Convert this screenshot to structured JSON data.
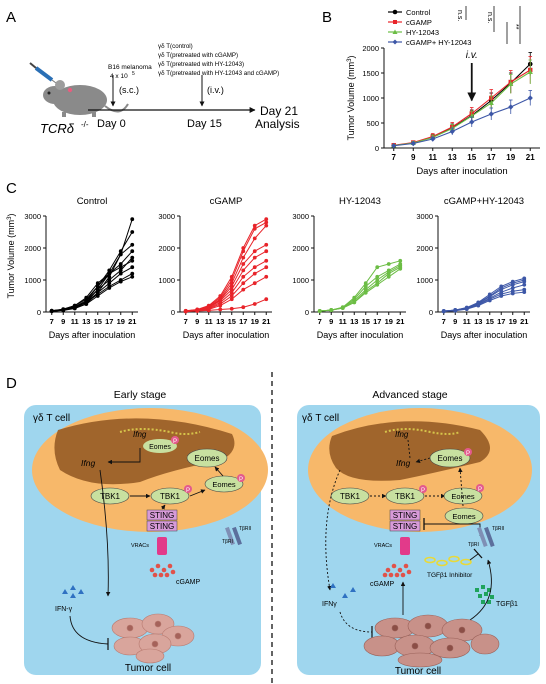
{
  "panel_labels": {
    "a": "A",
    "b": "B",
    "c": "C",
    "d": "D"
  },
  "timeline": {
    "mouse_label": "TCRδ",
    "mouse_superscript": "-/-",
    "b16_line1": "B16 melanoma",
    "b16_line2": "4 x 10",
    "b16_exp": "5",
    "sc": "(s.c.)",
    "iv": "(i.v.)",
    "day0": "Day 0",
    "day15": "Day 15",
    "day21_line1": "Day 21",
    "day21_line2": "Analysis",
    "treatments": [
      "γδ T(control)",
      "γδ T(pretreated with cGAMP)",
      "γδ T(pretreated with HY-12043)",
      "γδ T(pretreated with HY-12043 and cGAMP)"
    ]
  },
  "colors": {
    "control": "#000000",
    "cgamp": "#e8242a",
    "hy": "#6cbd45",
    "combo": "#3d57a7",
    "cell_bg": "#9fd6ee",
    "cytoplasm": "#f7b86a",
    "nucleus": "#a0652c",
    "node_green": "#c8e0a0",
    "sting": "#d79ad8",
    "tumor": "#c89189"
  },
  "chart_data": [
    {
      "type": "line",
      "panel": "B",
      "xlabel": "Days after inoculation",
      "ylabel": "Tumor Volume (mm",
      "ylabel_exp": "3",
      "ylabel_close": ")",
      "x": [
        7,
        9,
        11,
        13,
        15,
        17,
        19,
        21
      ],
      "xticks": [
        "7",
        "9",
        "11",
        "13",
        "15",
        "17",
        "19",
        "21"
      ],
      "yticks": [
        "0",
        "500",
        "1000",
        "1500",
        "2000"
      ],
      "ylim": [
        0,
        2000
      ],
      "annotation": "i.v.",
      "annotation_x": 15,
      "significance": [
        "n.s.",
        "n.s.",
        "**"
      ],
      "series": [
        {
          "name": "Control",
          "color": "#000000",
          "marker": "circle",
          "values": [
            50,
            100,
            220,
            400,
            650,
            950,
            1300,
            1680
          ],
          "err": [
            20,
            30,
            50,
            80,
            110,
            150,
            200,
            230
          ]
        },
        {
          "name": "cGAMP",
          "color": "#e8242a",
          "marker": "square",
          "values": [
            55,
            110,
            230,
            420,
            690,
            1000,
            1320,
            1560
          ],
          "err": [
            20,
            30,
            60,
            90,
            120,
            170,
            230,
            270
          ]
        },
        {
          "name": "HY-12043",
          "color": "#6cbd45",
          "marker": "triangle",
          "values": [
            50,
            100,
            210,
            390,
            640,
            900,
            1280,
            1520
          ],
          "err": [
            20,
            30,
            50,
            80,
            100,
            140,
            190,
            240
          ]
        },
        {
          "name": "cGAMP+ HY-12043",
          "color": "#3d57a7",
          "marker": "diamond",
          "values": [
            45,
            90,
            180,
            330,
            520,
            680,
            820,
            1000
          ],
          "err": [
            15,
            25,
            40,
            70,
            100,
            120,
            140,
            150
          ]
        }
      ]
    },
    {
      "type": "line",
      "panel": "C",
      "xlabel": "Days after inoculation",
      "ylabel": "Tumor Volume (mm",
      "ylabel_exp": "3",
      "ylabel_close": ")",
      "x": [
        7,
        9,
        11,
        13,
        15,
        17,
        19,
        21
      ],
      "xticks": [
        "7",
        "9",
        "11",
        "13",
        "15",
        "17",
        "19",
        "21"
      ],
      "yticks": [
        "0",
        "1000",
        "2000",
        "3000"
      ],
      "ylim": [
        0,
        3000
      ],
      "panels": [
        {
          "title": "Control",
          "color": "#000000",
          "lines": [
            [
              40,
              70,
              160,
              300,
              600,
              1100,
              1800,
              2900
            ],
            [
              40,
              80,
              170,
              350,
              800,
              1300,
              1900,
              2500
            ],
            [
              30,
              60,
              140,
              300,
              700,
              1200,
              1800,
              2100
            ],
            [
              40,
              80,
              200,
              400,
              800,
              1200,
              1500,
              1900
            ],
            [
              30,
              70,
              150,
              350,
              700,
              1000,
              1300,
              1700
            ],
            [
              40,
              90,
              200,
              450,
              900,
              1200,
              1400,
              1600
            ],
            [
              30,
              60,
              120,
              250,
              600,
              900,
              1200,
              1400
            ],
            [
              30,
              60,
              130,
              300,
              550,
              800,
              1000,
              1200
            ],
            [
              20,
              50,
              110,
              250,
              500,
              750,
              950,
              1100
            ]
          ]
        },
        {
          "title": "cGAMP",
          "color": "#e8242a",
          "lines": [
            [
              40,
              80,
              200,
              500,
              1100,
              2000,
              2700,
              2900
            ],
            [
              30,
              70,
              180,
              450,
              1000,
              1900,
              2600,
              2800
            ],
            [
              30,
              60,
              150,
              400,
              900,
              1700,
              2300,
              2700
            ],
            [
              30,
              70,
              160,
              380,
              800,
              1500,
              1900,
              2100
            ],
            [
              20,
              50,
              140,
              350,
              700,
              1300,
              1700,
              1900
            ],
            [
              20,
              50,
              120,
              300,
              600,
              1100,
              1400,
              1600
            ],
            [
              20,
              40,
              100,
              250,
              500,
              900,
              1200,
              1400
            ],
            [
              20,
              40,
              80,
              200,
              400,
              700,
              900,
              1100
            ],
            [
              20,
              30,
              50,
              80,
              100,
              150,
              250,
              400
            ]
          ]
        },
        {
          "title": "HY-12043",
          "color": "#6cbd45",
          "lines": [
            [
              30,
              60,
              150,
              450,
              900,
              1400,
              1500,
              1600
            ],
            [
              30,
              60,
              140,
              400,
              800,
              1100,
              1300,
              1500
            ],
            [
              30,
              60,
              130,
              350,
              700,
              1000,
              1250,
              1450
            ],
            [
              30,
              60,
              130,
              300,
              650,
              900,
              1200,
              1400
            ],
            [
              30,
              60,
              120,
              300,
              600,
              850,
              1100,
              1350
            ]
          ]
        },
        {
          "title": "cGAMP+HY-12043",
          "color": "#3d57a7",
          "lines": [
            [
              30,
              60,
              140,
              300,
              550,
              800,
              950,
              1050
            ],
            [
              30,
              60,
              130,
              280,
              500,
              750,
              900,
              1000
            ],
            [
              30,
              60,
              120,
              260,
              480,
              700,
              850,
              950
            ],
            [
              20,
              50,
              110,
              240,
              430,
              620,
              750,
              850
            ],
            [
              20,
              50,
              100,
              220,
              400,
              560,
              650,
              700
            ],
            [
              20,
              40,
              90,
              200,
              360,
              500,
              580,
              620
            ]
          ]
        }
      ]
    }
  ],
  "diagram": {
    "early_title": "Early stage",
    "advanced_title": "Advanced stage",
    "gd_cell": "γδ T cell",
    "ifng": "Ifng",
    "eomes": "Eomes",
    "p": "P",
    "tbk1": "TBK1",
    "sting": "STING",
    "vracs": "VRACs",
    "cgamp": "cGAMP",
    "ifn_gamma_early": "IFN-γ",
    "ifn_gamma_adv": "IFNγ",
    "tgfbr1": "TβRI",
    "tgfbr2": "TβRII",
    "tgfb1": "TGFβ1",
    "tgfb1_inhibitor": "TGFβ1 Inhibitor",
    "tumor_cell": "Tumor cell"
  }
}
